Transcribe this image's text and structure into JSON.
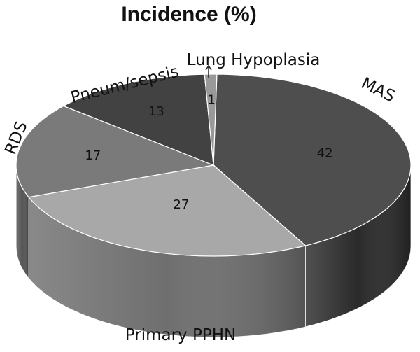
{
  "chart_data": {
    "type": "pie",
    "title": "Incidence (%)",
    "categories": [
      "MAS",
      "Primary PPHN",
      "RDS",
      "Pneum/sepsis",
      "Lung Hypoplasia"
    ],
    "values": [
      42,
      27,
      17,
      13,
      1
    ],
    "value_labels": [
      "42",
      "27",
      "17",
      "13",
      "1"
    ],
    "style": "3d",
    "colors": [
      "#4e4e4e",
      "#a8a8a8",
      "#7a7a7a",
      "#424242",
      "#999999"
    ],
    "side_colors": [
      "#2a2a2a",
      "#6f6f6f",
      "#555555",
      "#303030",
      "#666666"
    ],
    "legend": "none"
  }
}
